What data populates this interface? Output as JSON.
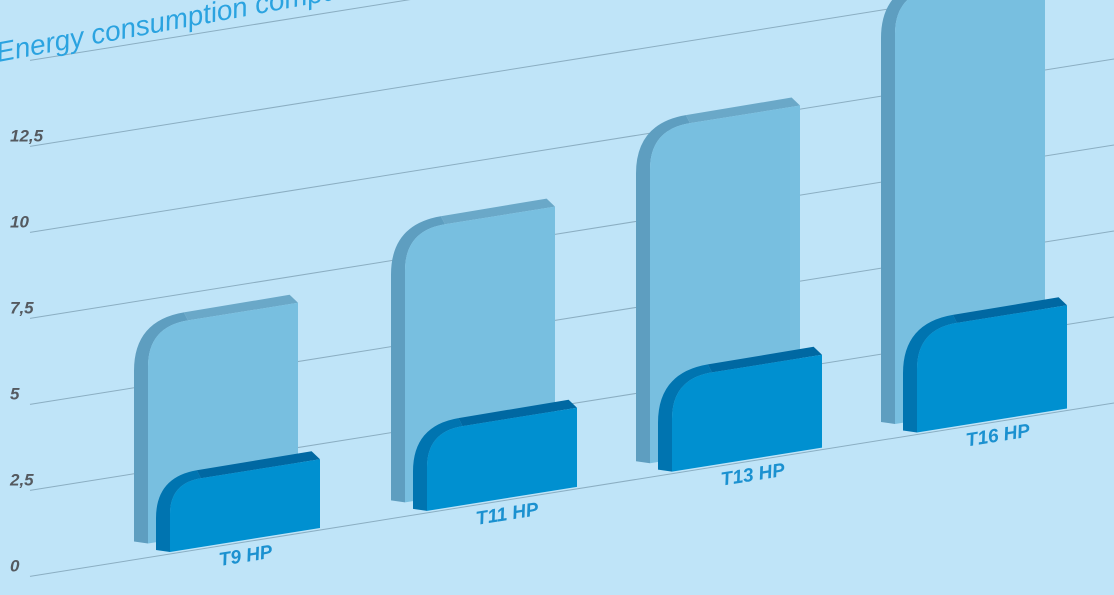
{
  "chart_data": {
    "type": "bar",
    "title": "Energy consumption compariso",
    "xlabel": "",
    "ylabel": "",
    "categories": [
      "T9 HP",
      "T11 HP",
      "T13 HP",
      "T16 HP"
    ],
    "y_tick_labels": [
      "0",
      "2,5",
      "5",
      "7,5",
      "10",
      "12,5"
    ],
    "ylim": [
      0,
      15
    ],
    "series": [
      {
        "values": [
          6.3,
          7.9,
          9.7,
          12.5
        ]
      },
      {
        "values": [
          2.0,
          2.3,
          2.7,
          3.0
        ]
      }
    ],
    "grid": true,
    "legend": "none",
    "style": "3d-rounded-bars",
    "colors": {
      "background": "#bfe4f8",
      "series_back_face": "#78bfe0",
      "series_back_side": "#5e9ec0",
      "series_back_top": "#6aa8c8",
      "series_front_face": "#0090d0",
      "series_front_side": "#0074b0",
      "series_front_top": "#0068a2",
      "grid_line": "#7a9cb0",
      "tick_text": "#555a60",
      "category_text": "#1b91d0",
      "title_text": "#2ba3e0"
    }
  }
}
